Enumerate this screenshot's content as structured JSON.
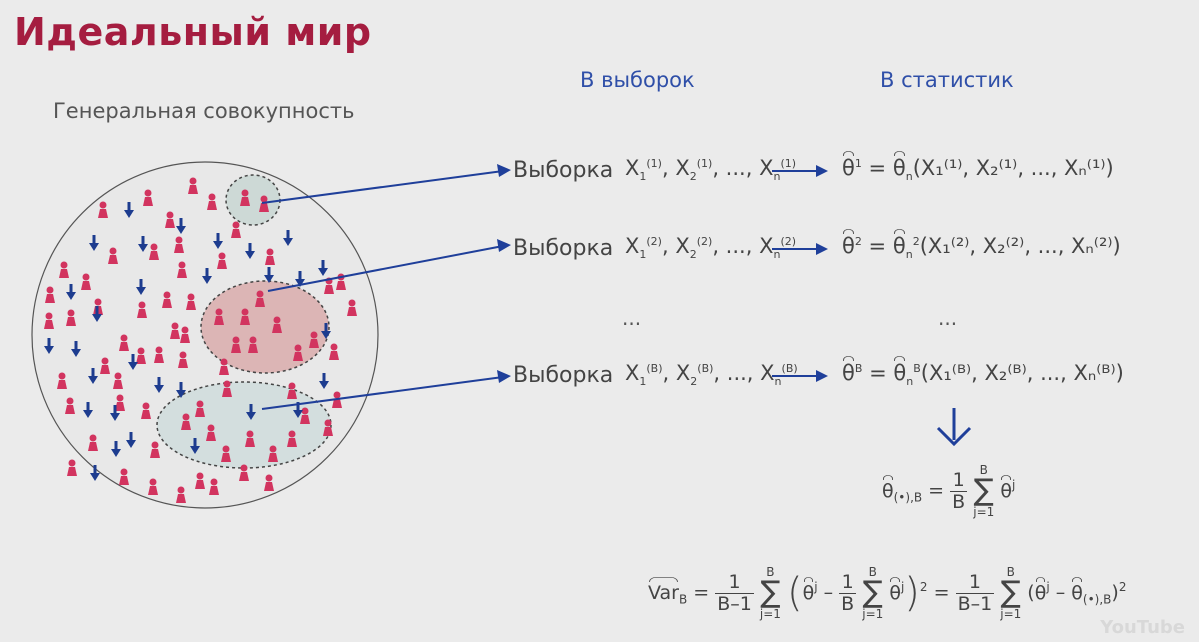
{
  "slide": {
    "title": "Идеальный мир",
    "population_label": "Генеральная совокупность",
    "col_samples": "B выборок",
    "col_stats": "B статистик",
    "sample_word": "Выборка",
    "ellipsis": "...",
    "rows": [
      {
        "x1": "X",
        "s1": "1",
        "u1": "(1)",
        "x2": "X",
        "s2": "2",
        "u2": "(1)",
        "xn": "X",
        "sn": "n",
        "un": "(1)",
        "theta": "θ",
        "theta_sup": "1",
        "eq": "=",
        "theta_n": "θ",
        "theta_n_sub": "n",
        "theta_n_sup": "",
        "args": "X₁⁽¹⁾, X₂⁽¹⁾, ..., Xₙ⁽¹⁾"
      },
      {
        "x1": "X",
        "s1": "1",
        "u1": "(2)",
        "x2": "X",
        "s2": "2",
        "u2": "(2)",
        "xn": "X",
        "sn": "n",
        "un": "(2)",
        "theta": "θ",
        "theta_sup": "2",
        "eq": "=",
        "theta_n": "θ",
        "theta_n_sub": "n",
        "theta_n_sup": "2",
        "args": "X₁⁽²⁾, X₂⁽²⁾, ..., Xₙ⁽²⁾"
      },
      {
        "x1": "X",
        "s1": "1",
        "u1": "(B)",
        "x2": "X",
        "s2": "2",
        "u2": "(B)",
        "xn": "X",
        "sn": "n",
        "un": "(B)",
        "theta": "θ",
        "theta_sup": "B",
        "eq": "=",
        "theta_n": "θ",
        "theta_n_sub": "n",
        "theta_n_sup": "B",
        "args": "X₁⁽ᴮ⁾, X₂⁽ᴮ⁾, ..., Xₙ⁽ᴮ⁾"
      }
    ],
    "mean_formula": {
      "lhs": "θ",
      "lhs_sub": "(•),B",
      "eq": "=",
      "num": "1",
      "den": "B",
      "sum_top": "B",
      "sum_bottom": "j=1",
      "sigma": "∑",
      "term": "θ",
      "term_sup": "j"
    },
    "var_formula": {
      "lhs": "Var",
      "lhs_sub": "B",
      "eq": "=",
      "num": "1",
      "den": "B–1",
      "sum_top": "B",
      "sum_bottom": "j=1",
      "sigma": "∑",
      "open": "(",
      "close": ")",
      "square": "2",
      "inner_theta": "θ",
      "inner_sup": "j",
      "minus": "–",
      "inner_num": "1",
      "inner_den": "B",
      "eq2": "=",
      "rhs_theta_mean": "θ",
      "rhs_mean_sub": "(•),B"
    },
    "watermark": "YouTube"
  }
}
